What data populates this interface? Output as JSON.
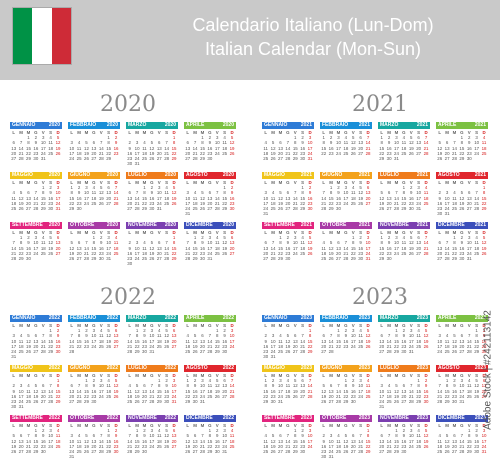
{
  "header": {
    "title_it": "Calendario Italiano (Lun-Dom)",
    "title_en": "Italian Calendar (Mon-Sun)",
    "bg": "#c9c9c9",
    "flag_colors": [
      "#009246",
      "#ffffff",
      "#ce2b37"
    ]
  },
  "watermark": "Adobe Stock | #242113142",
  "weekday_labels": [
    "L",
    "M",
    "M",
    "G",
    "V",
    "S",
    "D"
  ],
  "month_colors": [
    "#2e7bd6",
    "#1a8fd8",
    "#17a7a0",
    "#7cc142",
    "#f0c419",
    "#f3a21b",
    "#ef7b1b",
    "#e0262d",
    "#e2247e",
    "#a83aa6",
    "#7b3fb0",
    "#3b4fbb"
  ],
  "years": [
    {
      "year": "2020",
      "months": [
        {
          "name": "GENNAIO",
          "year": "2020",
          "start": 2,
          "days": 31
        },
        {
          "name": "FEBBRAIO",
          "year": "2020",
          "start": 5,
          "days": 29
        },
        {
          "name": "MARZO",
          "year": "2020",
          "start": 6,
          "days": 31
        },
        {
          "name": "APRILE",
          "year": "2020",
          "start": 2,
          "days": 30
        },
        {
          "name": "MAGGIO",
          "year": "2020",
          "start": 4,
          "days": 31
        },
        {
          "name": "GIUGNO",
          "year": "2020",
          "start": 0,
          "days": 30
        },
        {
          "name": "LUGLIO",
          "year": "2020",
          "start": 2,
          "days": 31
        },
        {
          "name": "AGOSTO",
          "year": "2020",
          "start": 5,
          "days": 31
        },
        {
          "name": "SETTEMBRE",
          "year": "2020",
          "start": 1,
          "days": 30
        },
        {
          "name": "OTTOBRE",
          "year": "2020",
          "start": 3,
          "days": 31
        },
        {
          "name": "NOVEMBRE",
          "year": "2020",
          "start": 6,
          "days": 30
        },
        {
          "name": "DICEMBRE",
          "year": "2020",
          "start": 1,
          "days": 31
        }
      ]
    },
    {
      "year": "2021",
      "months": [
        {
          "name": "GENNAIO",
          "year": "2021",
          "start": 4,
          "days": 31
        },
        {
          "name": "FEBBRAIO",
          "year": "2021",
          "start": 0,
          "days": 28
        },
        {
          "name": "MARZO",
          "year": "2021",
          "start": 0,
          "days": 31
        },
        {
          "name": "APRILE",
          "year": "2021",
          "start": 3,
          "days": 30
        },
        {
          "name": "MAGGIO",
          "year": "2021",
          "start": 5,
          "days": 31
        },
        {
          "name": "GIUGNO",
          "year": "2021",
          "start": 1,
          "days": 30
        },
        {
          "name": "LUGLIO",
          "year": "2021",
          "start": 3,
          "days": 31
        },
        {
          "name": "AGOSTO",
          "year": "2021",
          "start": 6,
          "days": 31
        },
        {
          "name": "SETTEMBRE",
          "year": "2021",
          "start": 2,
          "days": 30
        },
        {
          "name": "OTTOBRE",
          "year": "2021",
          "start": 4,
          "days": 31
        },
        {
          "name": "NOVEMBRE",
          "year": "2021",
          "start": 0,
          "days": 30
        },
        {
          "name": "DICEMBRE",
          "year": "2021",
          "start": 2,
          "days": 31
        }
      ]
    },
    {
      "year": "2022",
      "months": [
        {
          "name": "GENNAIO",
          "year": "2022",
          "start": 5,
          "days": 31
        },
        {
          "name": "FEBBRAIO",
          "year": "2022",
          "start": 1,
          "days": 28
        },
        {
          "name": "MARZO",
          "year": "2022",
          "start": 1,
          "days": 31
        },
        {
          "name": "APRILE",
          "year": "2022",
          "start": 4,
          "days": 30
        },
        {
          "name": "MAGGIO",
          "year": "2022",
          "start": 6,
          "days": 31
        },
        {
          "name": "GIUGNO",
          "year": "2022",
          "start": 2,
          "days": 30
        },
        {
          "name": "LUGLIO",
          "year": "2022",
          "start": 4,
          "days": 31
        },
        {
          "name": "AGOSTO",
          "year": "2022",
          "start": 0,
          "days": 31
        },
        {
          "name": "SETTEMBRE",
          "year": "2022",
          "start": 3,
          "days": 30
        },
        {
          "name": "OTTOBRE",
          "year": "2022",
          "start": 5,
          "days": 31
        },
        {
          "name": "NOVEMBRE",
          "year": "2022",
          "start": 1,
          "days": 30
        },
        {
          "name": "DICEMBRE",
          "year": "2022",
          "start": 3,
          "days": 31
        }
      ]
    },
    {
      "year": "2023",
      "months": [
        {
          "name": "GENNAIO",
          "year": "2023",
          "start": 6,
          "days": 31
        },
        {
          "name": "FEBBRAIO",
          "year": "2023",
          "start": 2,
          "days": 28
        },
        {
          "name": "MARZO",
          "year": "2023",
          "start": 2,
          "days": 31
        },
        {
          "name": "APRILE",
          "year": "2023",
          "start": 5,
          "days": 30
        },
        {
          "name": "MAGGIO",
          "year": "2023",
          "start": 0,
          "days": 31
        },
        {
          "name": "GIUGNO",
          "year": "2023",
          "start": 3,
          "days": 30
        },
        {
          "name": "LUGLIO",
          "year": "2023",
          "start": 5,
          "days": 31
        },
        {
          "name": "AGOSTO",
          "year": "2023",
          "start": 1,
          "days": 31
        },
        {
          "name": "SETTEMBRE",
          "year": "2023",
          "start": 4,
          "days": 30
        },
        {
          "name": "OTTOBRE",
          "year": "2023",
          "start": 6,
          "days": 31
        },
        {
          "name": "NOVEMBRE",
          "year": "2023",
          "start": 2,
          "days": 30
        },
        {
          "name": "DICEMBRE",
          "year": "2023",
          "start": 4,
          "days": 31
        }
      ]
    }
  ]
}
